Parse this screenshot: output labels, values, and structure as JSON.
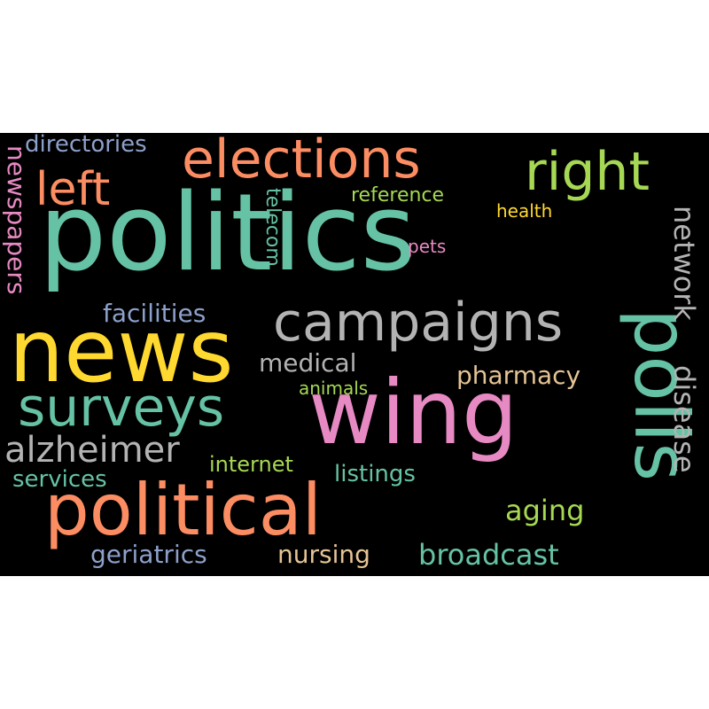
{
  "words": {
    "politics": {
      "text": "politics",
      "color": "#66c2a5"
    },
    "news": {
      "text": "news",
      "color": "#ffd92f"
    },
    "wing": {
      "text": "wing",
      "color": "#e78ac3"
    },
    "polls": {
      "text": "polls",
      "color": "#66c2a5"
    },
    "political": {
      "text": "political",
      "color": "#fc8d62"
    },
    "elections": {
      "text": "elections",
      "color": "#fc8d62"
    },
    "campaigns": {
      "text": "campaigns",
      "color": "#b3b3b3"
    },
    "surveys": {
      "text": "surveys",
      "color": "#66c2a5"
    },
    "right": {
      "text": "right",
      "color": "#a6d854"
    },
    "left": {
      "text": "left",
      "color": "#fc8d62"
    },
    "alzheimer": {
      "text": "alzheimer",
      "color": "#b3b3b3"
    },
    "network": {
      "text": "network",
      "color": "#b3b3b3"
    },
    "disease": {
      "text": "disease",
      "color": "#b3b3b3"
    },
    "broadcast": {
      "text": "broadcast",
      "color": "#66c2a5"
    },
    "aging": {
      "text": "aging",
      "color": "#a6d854"
    },
    "facilities": {
      "text": "facilities",
      "color": "#8da0cb"
    },
    "newspapers": {
      "text": "newspapers",
      "color": "#e78ac3"
    },
    "directories": {
      "text": "directories",
      "color": "#8da0cb"
    },
    "geriatrics": {
      "text": "geriatrics",
      "color": "#8da0cb"
    },
    "nursing": {
      "text": "nursing",
      "color": "#e5c494"
    },
    "pharmacy": {
      "text": "pharmacy",
      "color": "#e5c494"
    },
    "medical": {
      "text": "medical",
      "color": "#b3b3b3"
    },
    "services": {
      "text": "services",
      "color": "#66c2a5"
    },
    "listings": {
      "text": "listings",
      "color": "#66c2a5"
    },
    "internet": {
      "text": "internet",
      "color": "#a6d854"
    },
    "reference": {
      "text": "reference",
      "color": "#a6d854"
    },
    "telecom": {
      "text": "telecom",
      "color": "#66c2a5"
    },
    "health": {
      "text": "health",
      "color": "#ffd92f"
    },
    "pets": {
      "text": "pets",
      "color": "#e78ac3"
    },
    "animals": {
      "text": "animals",
      "color": "#a6d854"
    }
  }
}
